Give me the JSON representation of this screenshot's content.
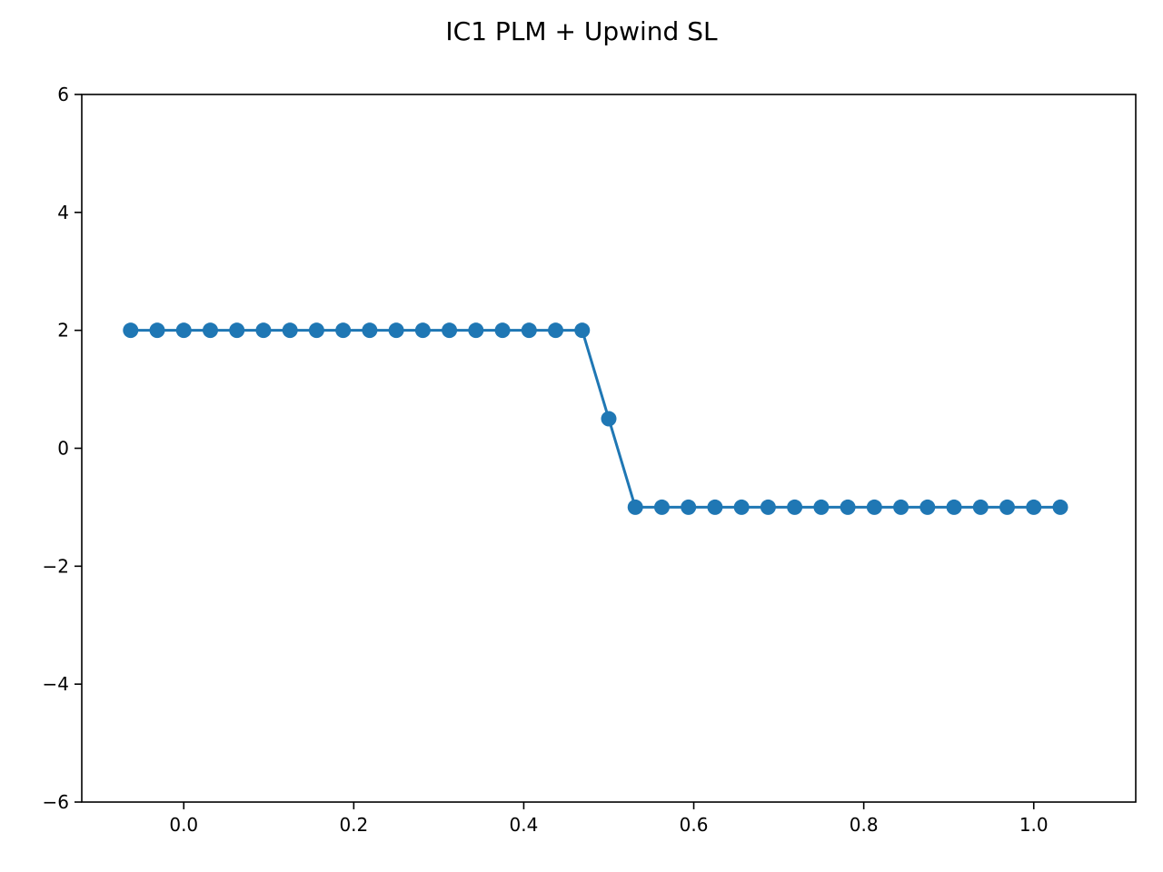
{
  "chart_data": {
    "type": "line",
    "title": "IC1 PLM + Upwind SL",
    "xlabel": "",
    "ylabel": "",
    "xlim": [
      -0.12,
      1.12
    ],
    "ylim": [
      -6,
      6
    ],
    "grid": false,
    "marker": "circle",
    "color": "#1f77b4",
    "x_ticks": [
      {
        "value": 0.0,
        "label": "0.0"
      },
      {
        "value": 0.2,
        "label": "0.2"
      },
      {
        "value": 0.4,
        "label": "0.4"
      },
      {
        "value": 0.6,
        "label": "0.6"
      },
      {
        "value": 0.8,
        "label": "0.8"
      },
      {
        "value": 1.0,
        "label": "1.0"
      }
    ],
    "y_ticks": [
      {
        "value": -6,
        "label": "−6"
      },
      {
        "value": -4,
        "label": "−4"
      },
      {
        "value": -2,
        "label": "−2"
      },
      {
        "value": 0,
        "label": "0"
      },
      {
        "value": 2,
        "label": "2"
      },
      {
        "value": 4,
        "label": "4"
      },
      {
        "value": 6,
        "label": "6"
      }
    ],
    "series": [
      {
        "x": [
          -0.0625,
          -0.03125,
          0.0,
          0.03125,
          0.0625,
          0.09375,
          0.125,
          0.15625,
          0.1875,
          0.21875,
          0.25,
          0.28125,
          0.3125,
          0.34375,
          0.375,
          0.40625,
          0.4375,
          0.46875,
          0.5,
          0.53125,
          0.5625,
          0.59375,
          0.625,
          0.65625,
          0.6875,
          0.71875,
          0.75,
          0.78125,
          0.8125,
          0.84375,
          0.875,
          0.90625,
          0.9375,
          0.96875,
          1.0,
          1.03125
        ],
        "y": [
          2,
          2,
          2,
          2,
          2,
          2,
          2,
          2,
          2,
          2,
          2,
          2,
          2,
          2,
          2,
          2,
          2,
          2,
          0.5,
          -1,
          -1,
          -1,
          -1,
          -1,
          -1,
          -1,
          -1,
          -1,
          -1,
          -1,
          -1,
          -1,
          -1,
          -1,
          -1,
          -1
        ]
      }
    ]
  }
}
